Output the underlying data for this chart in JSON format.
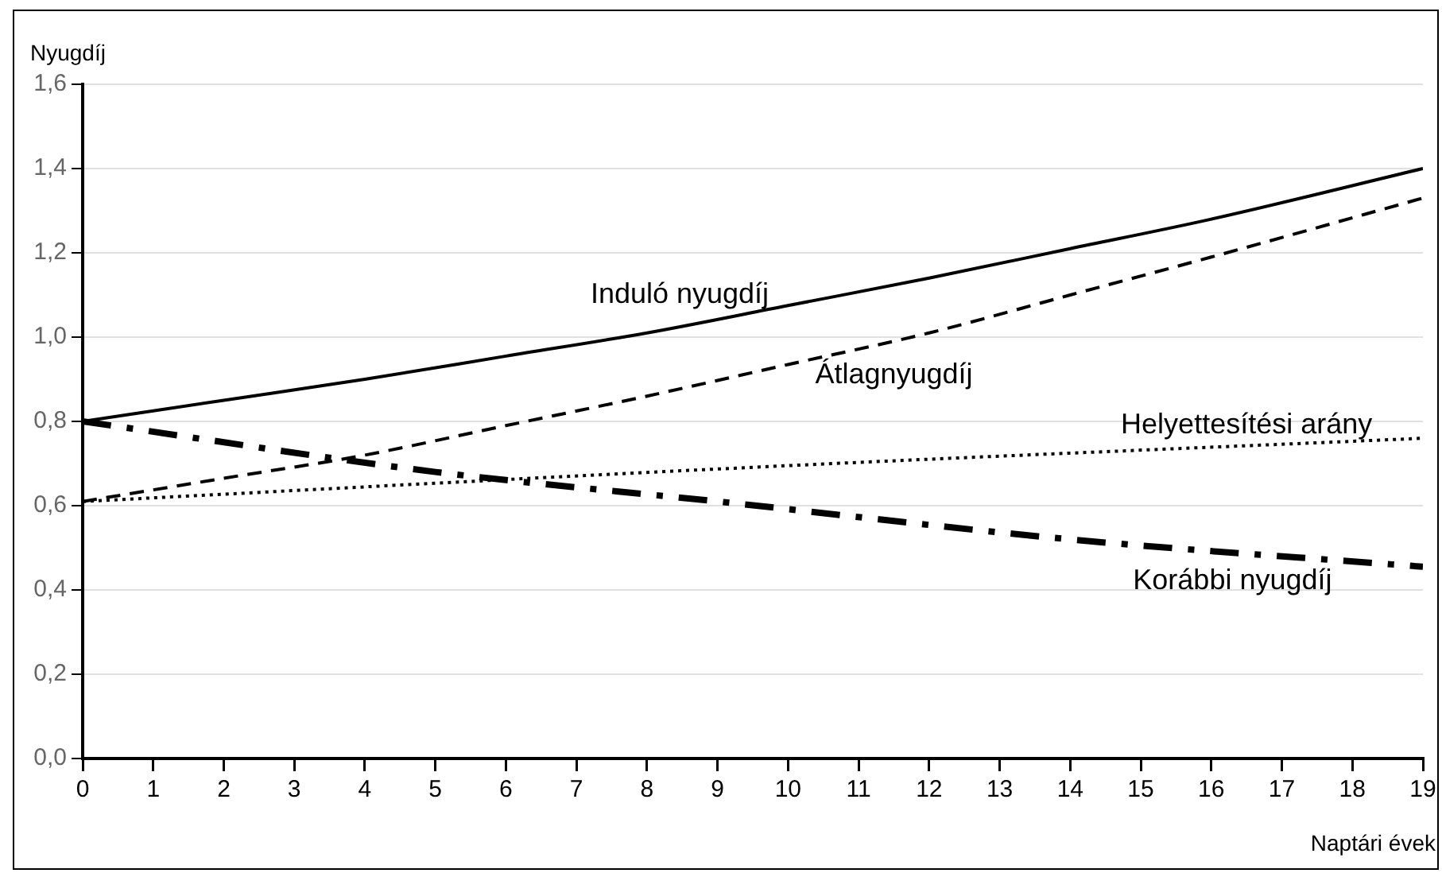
{
  "chart_data": {
    "type": "line",
    "ylabel": "Nyugdíj",
    "xlabel": "Naptári évek",
    "xlim": [
      0,
      19
    ],
    "xticks": [
      0,
      1,
      2,
      3,
      4,
      5,
      6,
      7,
      8,
      9,
      10,
      11,
      12,
      13,
      14,
      15,
      16,
      17,
      18,
      19
    ],
    "ylim": [
      0,
      1.6
    ],
    "yticks": [
      {
        "value": 0,
        "label": "0,0"
      },
      {
        "value": 0.2,
        "label": "0,2"
      },
      {
        "value": 0.4,
        "label": "0,4"
      },
      {
        "value": 0.6,
        "label": "0,6"
      },
      {
        "value": 0.8,
        "label": "0,8"
      },
      {
        "value": 1,
        "label": "1,0"
      },
      {
        "value": 1.2,
        "label": "1,2"
      },
      {
        "value": 1.4,
        "label": "1,4"
      },
      {
        "value": 1.6,
        "label": "1,6"
      }
    ],
    "grid": "y",
    "legend": false,
    "marker": "none",
    "series": [
      {
        "name": "Induló nyugdíj",
        "color": "#000000",
        "line_style": "solid",
        "x": [
          0,
          2,
          4,
          6,
          8,
          10,
          12,
          14,
          16,
          19
        ],
        "values": [
          0.8,
          0.85,
          0.9,
          0.955,
          1.01,
          1.075,
          1.14,
          1.21,
          1.28,
          1.4
        ]
      },
      {
        "name": "Átlagnyugdíj",
        "color": "#000000",
        "line_style": "dashed",
        "x": [
          0,
          2,
          4,
          6,
          8,
          10,
          12,
          14,
          16,
          19
        ],
        "values": [
          0.61,
          0.665,
          0.72,
          0.79,
          0.86,
          0.935,
          1.01,
          1.1,
          1.19,
          1.33
        ]
      },
      {
        "name": "Helyettesítési arány",
        "color": "#000000",
        "line_style": "dotted",
        "x": [
          0,
          10,
          19
        ],
        "values": [
          0.61,
          0.695,
          0.76
        ]
      },
      {
        "name": "Korábbi nyugdíj",
        "color": "#000000",
        "line_style": "dashdot",
        "x": [
          0,
          5,
          9,
          14,
          19
        ],
        "values": [
          0.8,
          0.68,
          0.61,
          0.52,
          0.455
        ]
      }
    ]
  }
}
